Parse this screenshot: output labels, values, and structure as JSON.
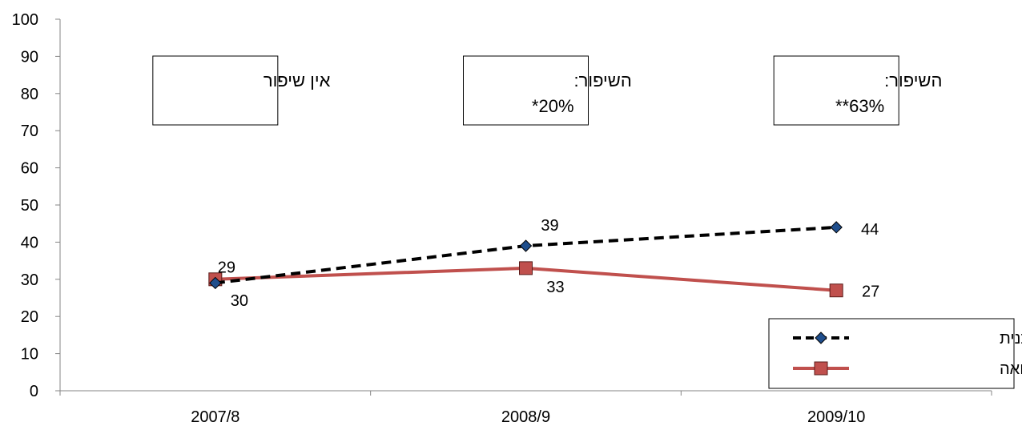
{
  "chart_data": {
    "type": "line",
    "categories": [
      "2007/8",
      "2008/9",
      "2009/10"
    ],
    "ylim": [
      0,
      100
    ],
    "yticks": [
      0,
      10,
      20,
      30,
      40,
      50,
      60,
      70,
      80,
      90,
      100
    ],
    "grid": false,
    "legend_position": "bottom-right",
    "series": [
      {
        "name": "משתתפים בתכנית",
        "values": [
          29,
          39,
          44
        ],
        "labels": [
          "29",
          "39",
          "44"
        ],
        "color": "#000000",
        "line_style": "dashed",
        "marker": "diamond",
        "marker_color": "#1f4e8c"
      },
      {
        "name": "קבוצת השוואה",
        "values": [
          30,
          33,
          27
        ],
        "labels": [
          "30",
          "33",
          "27"
        ],
        "color": "#c0504d",
        "line_style": "solid",
        "marker": "square",
        "marker_color": "#c0504d"
      }
    ],
    "annotations": [
      {
        "line1": "אין שיפור",
        "line2": ""
      },
      {
        "line1": "השיפור:",
        "line2": "*20%"
      },
      {
        "line1": "השיפור:",
        "line2": "**63%"
      }
    ]
  }
}
